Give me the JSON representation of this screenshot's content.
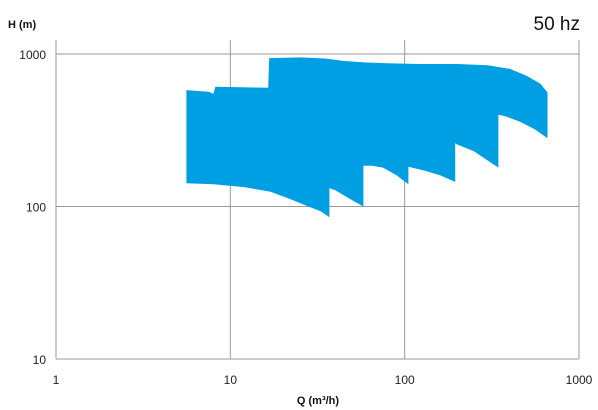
{
  "chart_data": {
    "type": "area",
    "title": "50 hz",
    "xlabel": "Q (m³/h)",
    "ylabel": "H (m)",
    "xscale": "log",
    "yscale": "log",
    "xlim": [
      1,
      1000
    ],
    "ylim": [
      10,
      1000
    ],
    "xticks": [
      1,
      10,
      100,
      1000
    ],
    "yticks": [
      10,
      100,
      1000
    ],
    "xtick_labels": [
      "1",
      "10",
      "100",
      "1000"
    ],
    "ytick_labels": [
      "10",
      "100",
      "1000"
    ],
    "grid": true,
    "color": "#009fe3",
    "coverage_outline": [
      [
        5.6,
        580
      ],
      [
        7.5,
        565
      ],
      [
        8.0,
        548
      ],
      [
        8.2,
        610
      ],
      [
        16.5,
        600
      ],
      [
        16.7,
        940
      ],
      [
        25,
        950
      ],
      [
        35,
        935
      ],
      [
        45,
        900
      ],
      [
        60,
        880
      ],
      [
        80,
        870
      ],
      [
        120,
        860
      ],
      [
        200,
        860
      ],
      [
        300,
        845
      ],
      [
        400,
        800
      ],
      [
        500,
        720
      ],
      [
        600,
        640
      ],
      [
        660,
        560
      ],
      [
        660,
        280
      ],
      [
        560,
        320
      ],
      [
        460,
        360
      ],
      [
        380,
        390
      ],
      [
        345,
        400
      ],
      [
        345,
        180
      ],
      [
        300,
        200
      ],
      [
        250,
        230
      ],
      [
        200,
        255
      ],
      [
        195,
        260
      ],
      [
        195,
        145
      ],
      [
        160,
        160
      ],
      [
        130,
        172
      ],
      [
        110,
        180
      ],
      [
        105,
        182
      ],
      [
        105,
        140
      ],
      [
        90,
        160
      ],
      [
        75,
        180
      ],
      [
        65,
        185
      ],
      [
        58,
        185
      ],
      [
        58,
        100
      ],
      [
        50,
        110
      ],
      [
        45,
        118
      ],
      [
        40,
        128
      ],
      [
        37,
        132
      ],
      [
        37,
        85
      ],
      [
        33,
        93
      ],
      [
        28,
        100
      ],
      [
        22,
        112
      ],
      [
        17,
        125
      ],
      [
        12,
        134
      ],
      [
        8,
        140
      ],
      [
        5.6,
        142
      ]
    ]
  }
}
